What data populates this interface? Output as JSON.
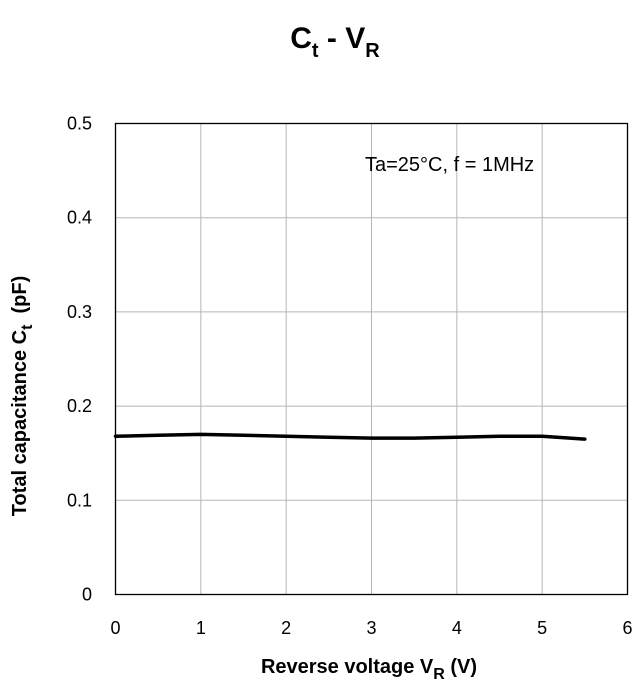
{
  "chart_data": {
    "type": "line",
    "title": {
      "main": "C",
      "sub1": "t",
      "sep": " - ",
      "main2": "V",
      "sub2": "R"
    },
    "annotation": "Ta=25°C, f = 1MHz",
    "xlabel": {
      "text": "Reverse voltage V",
      "sub": "R",
      "suffix": " (V)"
    },
    "ylabel": {
      "text": "Total capacitance C",
      "sub": "t",
      "suffix": "  (pF)"
    },
    "xlim": [
      0,
      6
    ],
    "ylim": [
      0,
      0.5
    ],
    "x_ticks": [
      "0",
      "1",
      "2",
      "3",
      "4",
      "5",
      "6"
    ],
    "y_ticks": [
      "0",
      "0.1",
      "0.2",
      "0.3",
      "0.4",
      "0.5"
    ],
    "grid": true,
    "series": [
      {
        "color": "#000000",
        "x": [
          0,
          0.5,
          1,
          1.5,
          2,
          2.5,
          3,
          3.5,
          4,
          4.5,
          5,
          5.5
        ],
        "y": [
          0.168,
          0.169,
          0.17,
          0.169,
          0.168,
          0.167,
          0.166,
          0.166,
          0.167,
          0.168,
          0.168,
          0.165
        ]
      }
    ]
  }
}
